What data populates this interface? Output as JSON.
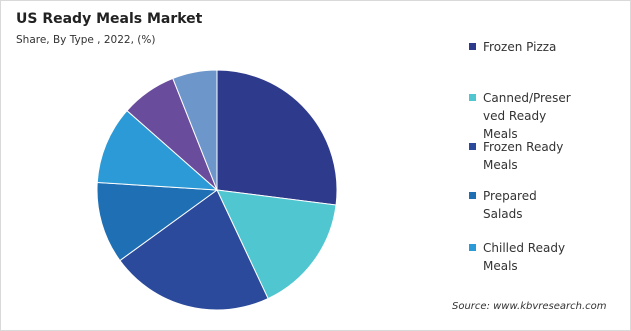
{
  "chart_data": {
    "type": "pie",
    "title": "US Ready Meals Market",
    "subtitle": "Share, By Type  , 2022, (%)",
    "categories": [
      "Frozen Pizza",
      "Canned/Preserved Ready Meals",
      "Frozen Ready Meals",
      "Prepared Salads",
      "Chilled Ready Meals",
      null,
      null
    ],
    "values": [
      27,
      16,
      22,
      11,
      10.5,
      7.5,
      6
    ],
    "colors": [
      "#2e3a8c",
      "#4fc6d0",
      "#2b4a9c",
      "#1f6fb5",
      "#2b9ad6",
      "#6a4c9c",
      "#6d97cb"
    ],
    "source": "Source: www.kbvresearch.com"
  }
}
